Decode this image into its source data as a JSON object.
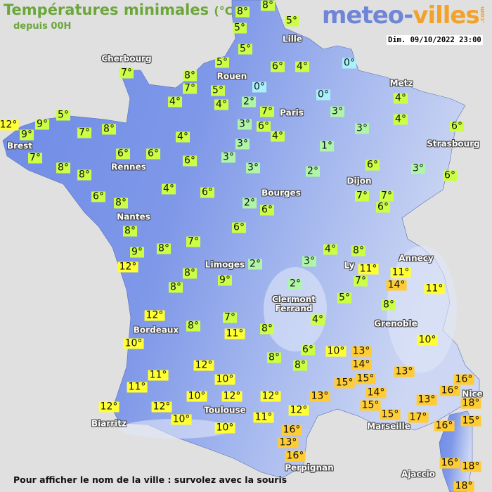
{
  "header": {
    "title": "Températures minimales",
    "unit": "(°C)",
    "subtitle": "depuis 00H",
    "logo": {
      "part1": "meteo-",
      "part2": "villes",
      "suffix": ".com"
    },
    "datetime": "Dim. 09/10/2022 23:00"
  },
  "footer": "Pour afficher le nom de la ville : survolez avec la souris",
  "colors": {
    "cold_0": "#a8f0fa",
    "cool_1_3": "#aef5a8",
    "mild_4_9": "#ccff44",
    "warm_10_12": "#ffff33",
    "hot_13_plus": "#ffcc33",
    "land_west": "#6f8ce6",
    "land_east": "#b4c4f0",
    "sea": "#e1e0e0"
  },
  "cities": [
    "Cherbourg",
    "Lille",
    "Rouen",
    "Paris",
    "Metz",
    "Strasbourg",
    "Brest",
    "Rennes",
    "Nantes",
    "Bourges",
    "Dijon",
    "Limoges",
    "Ly",
    "Annecy",
    "Clermont\nFerrand",
    "Grenoble",
    "Bordeaux",
    "Toulouse",
    "Biarritz",
    "Marseille",
    "Nice",
    "Perpignan",
    "Ajaccio"
  ],
  "temperatures": [
    "8°",
    "8°",
    "5°",
    "5°",
    "5°",
    "5°",
    "7°",
    "8°",
    "7°",
    "5°",
    "4°",
    "4°",
    "2°",
    "0°",
    "6°",
    "4°",
    "0°",
    "0°",
    "7°",
    "3°",
    "3°",
    "6°",
    "4°",
    "3°",
    "4°",
    "4°",
    "6°",
    "5°",
    "12°",
    "9°",
    "9°",
    "7°",
    "8°",
    "4°",
    "3°",
    "1°",
    "6°",
    "6°",
    "6°",
    "3°",
    "3°",
    "2°",
    "6°",
    "3°",
    "6°",
    "7°",
    "8°",
    "8°",
    "4°",
    "6°",
    "2°",
    "6°",
    "6°",
    "8°",
    "7°",
    "7°",
    "6°",
    "8°",
    "6°",
    "7°",
    "9°",
    "8°",
    "4°",
    "8°",
    "12°",
    "2°",
    "3°",
    "11°",
    "11°",
    "14°",
    "7°",
    "11°",
    "8°",
    "8°",
    "9°",
    "2°",
    "5°",
    "8°",
    "12°",
    "7°",
    "4°",
    "8°",
    "11°",
    "8°",
    "10°",
    "10°",
    "6°",
    "10°",
    "13°",
    "8°",
    "8°",
    "14°",
    "12°",
    "13°",
    "15°",
    "15°",
    "11°",
    "11°",
    "10°",
    "16°",
    "16°",
    "14°",
    "15°",
    "15°",
    "13°",
    "12°",
    "10°",
    "12°",
    "13°",
    "18°",
    "12°",
    "12°",
    "12°",
    "17°",
    "10°",
    "11°",
    "16°",
    "15°",
    "16°",
    "13°",
    "10°",
    "16°",
    "16°",
    "18°",
    "18°"
  ]
}
